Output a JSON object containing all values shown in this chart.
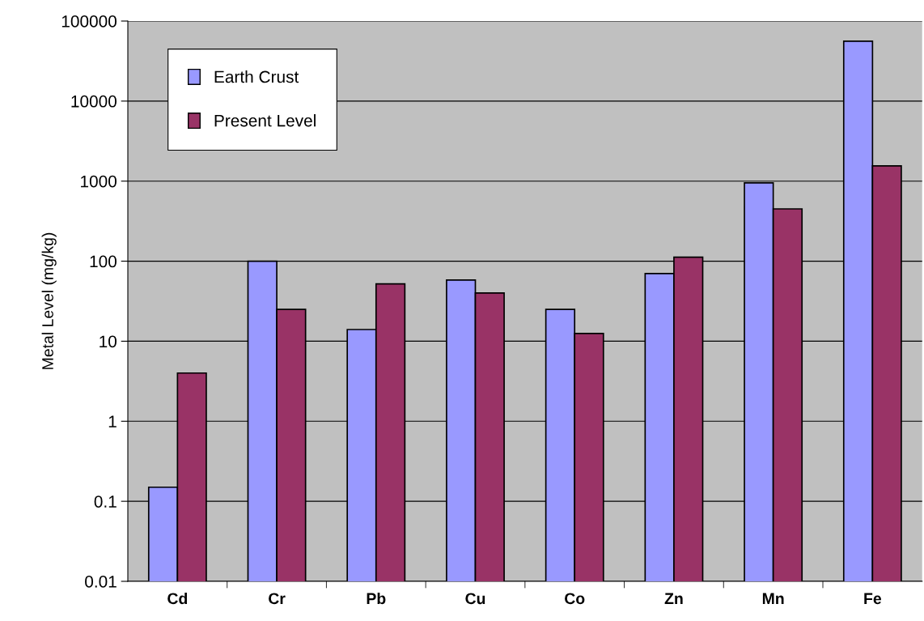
{
  "chart_data": {
    "type": "bar",
    "ylabel": "Metal Level (mg/kg)",
    "categories": [
      "Cd",
      "Cr",
      "Pb",
      "Cu",
      "Co",
      "Zn",
      "Mn",
      "Fe"
    ],
    "series": [
      {
        "name": "Earth Crust",
        "color": "#9999ff",
        "values": [
          0.15,
          100,
          14,
          58,
          25,
          70,
          950,
          56000
        ]
      },
      {
        "name": "Present Level",
        "color": "#993366",
        "values": [
          4,
          25,
          52,
          40,
          12.5,
          112,
          450,
          1550
        ]
      }
    ],
    "log": true,
    "ylim": [
      0.01,
      100000
    ],
    "yticks": [
      0.01,
      0.1,
      1,
      10,
      100,
      1000,
      10000,
      100000
    ],
    "grid": "y",
    "legend": "top left"
  }
}
